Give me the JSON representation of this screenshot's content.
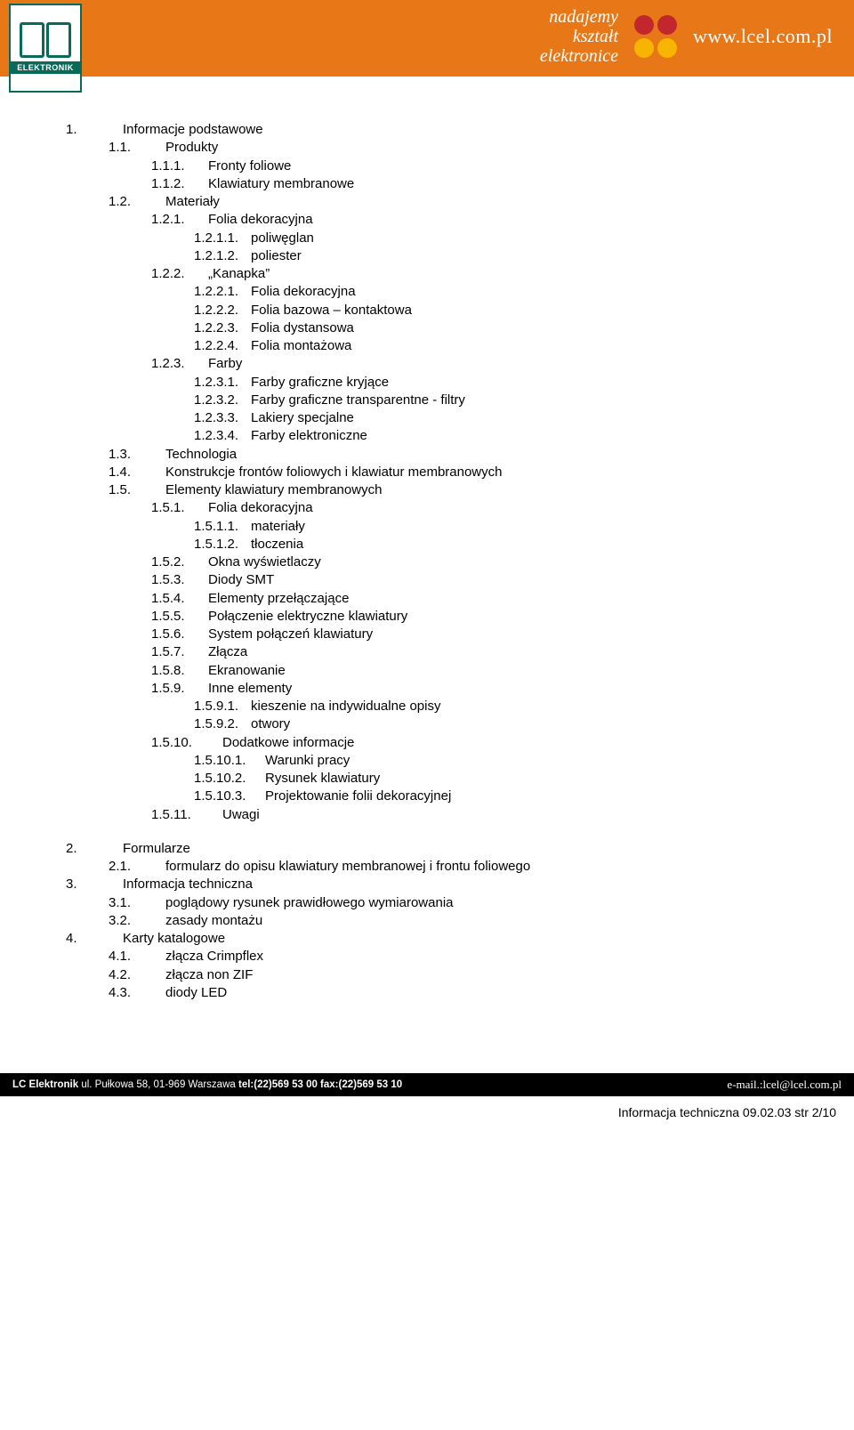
{
  "header": {
    "logo_label": "ELEKTRONIK",
    "tagline_l1": "nadajemy",
    "tagline_l2": "kształt",
    "tagline_l3": "elektronice",
    "url": "www.lcel.com.pl"
  },
  "toc": [
    {
      "num": "1.",
      "text": "Informacje podstawowe",
      "lvl": 0
    },
    {
      "num": "1.1.",
      "text": "Produkty",
      "lvl": 1
    },
    {
      "num": "1.1.1.",
      "text": "Fronty foliowe",
      "lvl": 2
    },
    {
      "num": "1.1.2.",
      "text": "Klawiatury membranowe",
      "lvl": 2
    },
    {
      "num": "1.2.",
      "text": "Materiały",
      "lvl": 1
    },
    {
      "num": "1.2.1.",
      "text": "Folia dekoracyjna",
      "lvl": 2
    },
    {
      "num": "1.2.1.1.",
      "text": "poliwęglan",
      "lvl": 3
    },
    {
      "num": "1.2.1.2.",
      "text": "poliester",
      "lvl": 3
    },
    {
      "num": "1.2.2.",
      "text": "„Kanapka”",
      "lvl": 2
    },
    {
      "num": "1.2.2.1.",
      "text": "Folia dekoracyjna",
      "lvl": 3
    },
    {
      "num": "1.2.2.2.",
      "text": "Folia bazowa – kontaktowa",
      "lvl": 3
    },
    {
      "num": "1.2.2.3.",
      "text": "Folia dystansowa",
      "lvl": 3
    },
    {
      "num": "1.2.2.4.",
      "text": "Folia montażowa",
      "lvl": 3
    },
    {
      "num": "1.2.3.",
      "text": "Farby",
      "lvl": 2
    },
    {
      "num": "1.2.3.1.",
      "text": "Farby graficzne kryjące",
      "lvl": 3
    },
    {
      "num": "1.2.3.2.",
      "text": "Farby graficzne transparentne - filtry",
      "lvl": 3
    },
    {
      "num": "1.2.3.3.",
      "text": "Lakiery specjalne",
      "lvl": 3
    },
    {
      "num": "1.2.3.4.",
      "text": "Farby elektroniczne",
      "lvl": 3
    },
    {
      "num": "1.3.",
      "text": "Technologia",
      "lvl": 1
    },
    {
      "num": "1.4.",
      "text": "Konstrukcje frontów foliowych i klawiatur membranowych",
      "lvl": 1
    },
    {
      "num": "1.5.",
      "text": "Elementy klawiatury membranowych",
      "lvl": 1
    },
    {
      "num": "1.5.1.",
      "text": "Folia dekoracyjna",
      "lvl": 2
    },
    {
      "num": "1.5.1.1.",
      "text": "materiały",
      "lvl": 3
    },
    {
      "num": "1.5.1.2.",
      "text": "tłoczenia",
      "lvl": 3
    },
    {
      "num": "1.5.2.",
      "text": "Okna wyświetlaczy",
      "lvl": 2
    },
    {
      "num": "1.5.3.",
      "text": "Diody SMT",
      "lvl": 2
    },
    {
      "num": "1.5.4.",
      "text": "Elementy przełączające",
      "lvl": 2
    },
    {
      "num": "1.5.5.",
      "text": "Połączenie elektryczne klawiatury",
      "lvl": 2
    },
    {
      "num": "1.5.6.",
      "text": "System połączeń klawiatury",
      "lvl": 2
    },
    {
      "num": "1.5.7.",
      "text": "Złącza",
      "lvl": 2
    },
    {
      "num": "1.5.8.",
      "text": "Ekranowanie",
      "lvl": 2
    },
    {
      "num": "1.5.9.",
      "text": "Inne elementy",
      "lvl": 2
    },
    {
      "num": "1.5.9.1.",
      "text": "kieszenie na indywidualne opisy",
      "lvl": 3
    },
    {
      "num": "1.5.9.2.",
      "text": "otwory",
      "lvl": 3
    },
    {
      "num": "1.5.10.",
      "text": "Dodatkowe informacje",
      "lvl": 2,
      "wide": true
    },
    {
      "num": "1.5.10.1.",
      "text": "Warunki pracy",
      "lvl": 3,
      "wide": true
    },
    {
      "num": "1.5.10.2.",
      "text": "Rysunek klawiatury",
      "lvl": 3,
      "wide": true
    },
    {
      "num": "1.5.10.3.",
      "text": "Projektowanie folii dekoracyjnej",
      "lvl": 3,
      "wide": true
    },
    {
      "num": "1.5.11.",
      "text": "Uwagi",
      "lvl": 2,
      "wide": true
    },
    {
      "gap": true
    },
    {
      "num": "2.",
      "text": "Formularze",
      "lvl": 0
    },
    {
      "num": "2.1.",
      "text": "formularz do opisu klawiatury membranowej i frontu foliowego",
      "lvl": 1
    },
    {
      "num": "3.",
      "text": "Informacja techniczna",
      "lvl": 0
    },
    {
      "num": "3.1.",
      "text": "poglądowy rysunek prawidłowego wymiarowania",
      "lvl": 1
    },
    {
      "num": "3.2.",
      "text": "zasady montażu",
      "lvl": 1
    },
    {
      "num": "4.",
      "text": "Karty katalogowe",
      "lvl": 0
    },
    {
      "num": "4.1.",
      "text": "złącza Crimpflex",
      "lvl": 1
    },
    {
      "num": "4.2.",
      "text": "złącza non ZIF",
      "lvl": 1
    },
    {
      "num": "4.3.",
      "text": "diody LED",
      "lvl": 1
    }
  ],
  "footer": {
    "company": "LC Elektronik",
    "address": "ul. Pułkowa 58, 01-969 Warszawa",
    "phone_label": "tel:(22)569 53 00 fax:(22)569 53 10",
    "email_label": "e-mail.:",
    "email": "lcel@lcel.com.pl"
  },
  "page_number": "Informacja techniczna 09.02.03 str 2/10",
  "colors": {
    "header_bg": "#e87817",
    "logo_border": "#0a6a5a",
    "footer_bg": "#000000",
    "text": "#000000",
    "header_text": "#ffffff"
  }
}
